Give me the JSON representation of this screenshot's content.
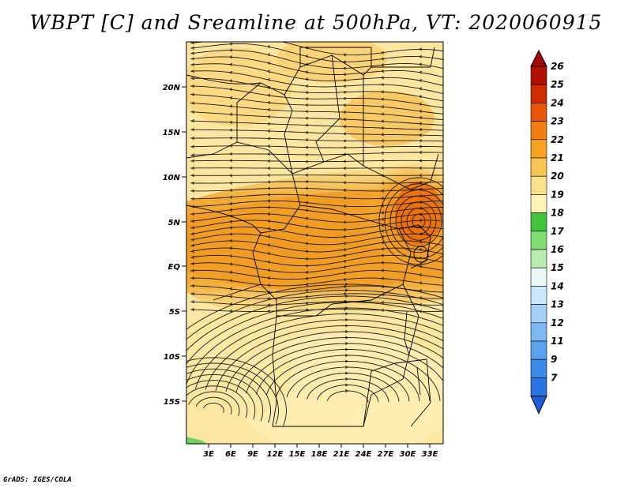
{
  "title": "WBPT [C] and Sreamline at 500hPa, VT: 2020060915",
  "credit": "GrADS: IGES/COLA",
  "map": {
    "lat_labels": [
      "20N",
      "15N",
      "10N",
      "5N",
      "EQ",
      "5S",
      "10S",
      "15S"
    ],
    "lon_labels": [
      "3E",
      "6E",
      "9E",
      "12E",
      "15E",
      "18E",
      "21E",
      "24E",
      "27E",
      "30E",
      "33E"
    ]
  },
  "colorbar": {
    "levels": [
      "7",
      "9",
      "11",
      "12",
      "13",
      "14",
      "15",
      "16",
      "17",
      "18",
      "19",
      "20",
      "21",
      "22",
      "23",
      "24",
      "25",
      "26"
    ],
    "colors": [
      "#1e5fd8",
      "#2a73e4",
      "#3b8ae8",
      "#5aa2ee",
      "#7cb8f3",
      "#a3d0f7",
      "#c9e6fb",
      "#e9f8f6",
      "#b8ecae",
      "#7fdc73",
      "#40c43a",
      "#fff4b8",
      "#fbe08a",
      "#f9c552",
      "#f6a321",
      "#ef7f10",
      "#e85507",
      "#d02c02",
      "#b01001"
    ],
    "top_arrow_color": "#a00800",
    "bottom_arrow_color": "#1e5fd8"
  }
}
